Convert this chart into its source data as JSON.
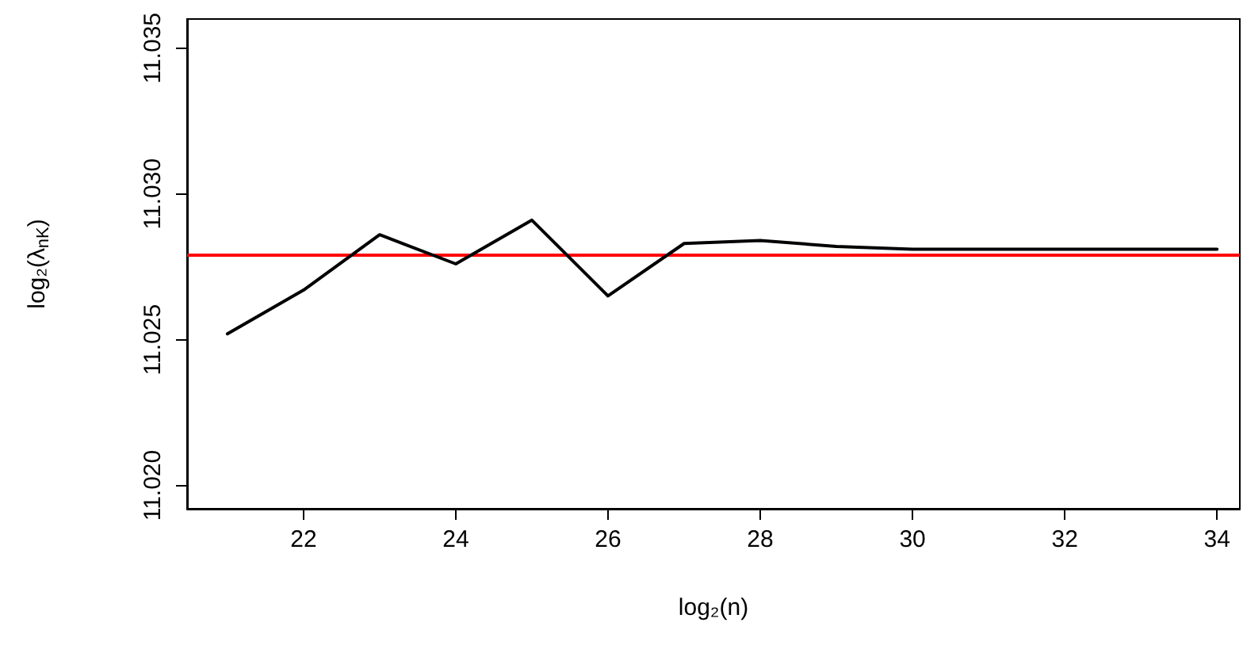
{
  "chart_data": {
    "type": "line",
    "xlabel": "log₂(n)",
    "ylabel": "log₂(λ$_{nK}$)",
    "x": [
      21,
      22,
      23,
      24,
      25,
      26,
      27,
      28,
      29,
      30,
      31,
      32,
      33,
      34
    ],
    "series": [
      {
        "color": "#000000",
        "values": [
          11.0252,
          11.0267,
          11.0286,
          11.0276,
          11.0291,
          11.0265,
          11.0283,
          11.0284,
          11.0282,
          11.0281,
          11.0281,
          11.0281,
          11.0281,
          11.0281
        ]
      }
    ],
    "xlim": [
      20.47,
      34.3
    ],
    "xticks": [
      22,
      24,
      26,
      28,
      30,
      32,
      34
    ],
    "ylim": [
      11.0192,
      11.036
    ],
    "yticks": [
      {
        "value": 11.02,
        "label": "11.020"
      },
      {
        "value": 11.025,
        "label": "11.025"
      },
      {
        "value": 11.03,
        "label": "11.030"
      },
      {
        "value": 11.035,
        "label": "11.035"
      }
    ],
    "ref_lines": [
      {
        "axis": "y",
        "value": 11.0279,
        "color": "#ff0000"
      }
    ],
    "grid": false,
    "marker": "none",
    "line_style": "solid"
  }
}
